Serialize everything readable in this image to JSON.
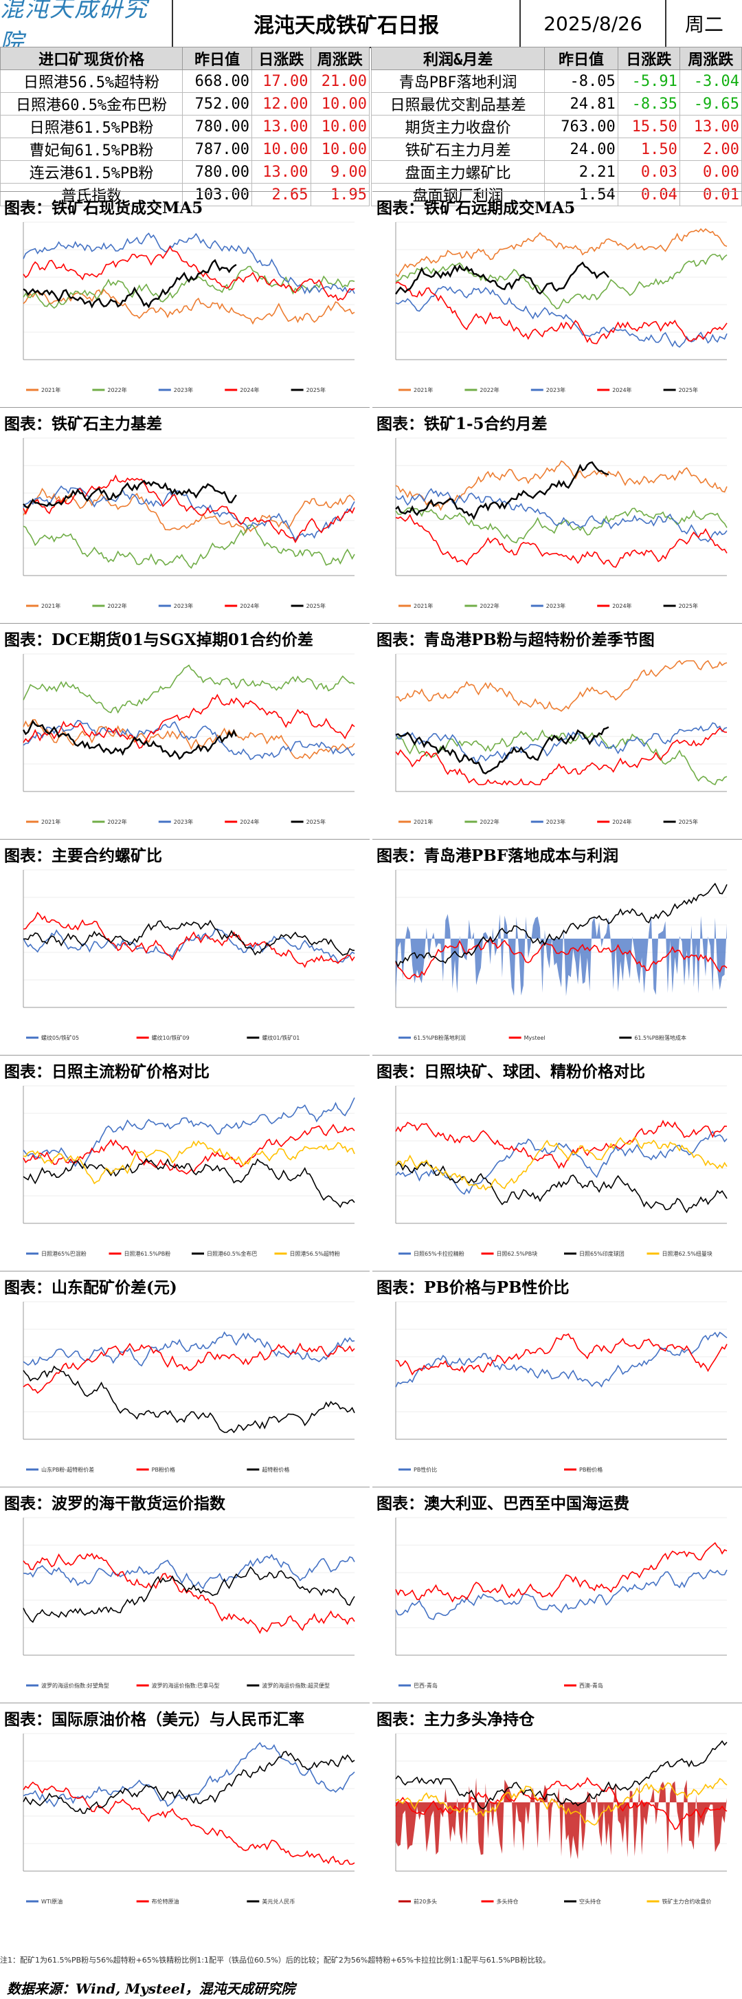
{
  "header": {
    "logo": "混沌天成研究院",
    "title": "混沌天成铁矿石日报",
    "date": "2025/8/26",
    "weekday": "周二"
  },
  "left_table": {
    "headers": [
      "进口矿现货价格",
      "昨日值",
      "日涨跌",
      "周涨跌"
    ],
    "rows": [
      [
        "日照港56.5%超特粉",
        "668.00",
        "17.00",
        "21.00"
      ],
      [
        "日照港60.5%金布巴粉",
        "752.00",
        "12.00",
        "10.00"
      ],
      [
        "日照港61.5%PB粉",
        "780.00",
        "13.00",
        "10.00"
      ],
      [
        "曹妃甸61.5%PB粉",
        "787.00",
        "10.00",
        "10.00"
      ],
      [
        "连云港61.5%PB粉",
        "780.00",
        "13.00",
        "9.00"
      ],
      [
        "普氏指数",
        "103.00",
        "2.65",
        "1.95"
      ]
    ]
  },
  "right_table": {
    "headers": [
      "利润&月差",
      "昨日值",
      "日涨跌",
      "周涨跌"
    ],
    "rows": [
      [
        "青岛PBF落地利润",
        "-8.05",
        "-5.91",
        "-3.04"
      ],
      [
        "日照最优交割品基差",
        "24.81",
        "-8.35",
        "-9.65"
      ],
      [
        "期货主力收盘价",
        "763.00",
        "15.50",
        "13.00"
      ],
      [
        "铁矿石主力月差",
        "24.00",
        "1.50",
        "2.00"
      ],
      [
        "盘面主力螺矿比",
        "2.21",
        "0.03",
        "0.00"
      ],
      [
        "盘面钢厂利润",
        "1.54",
        "0.04",
        "0.01"
      ]
    ]
  },
  "colors": {
    "up": "#e01515",
    "down": "#13b013",
    "y2021": "#ed7d31",
    "y2022": "#70ad47",
    "y2023": "#4472c4",
    "y2024": "#ff0000",
    "y2025": "#000000"
  },
  "panels": [
    {
      "id": "p1",
      "title": "图表：铁矿石现货成交MA5",
      "legend": [
        "2021年",
        "2022年",
        "2023年",
        "2024年",
        "2025年"
      ]
    },
    {
      "id": "p2",
      "title": "图表：铁矿石远期成交MA5",
      "legend": [
        "2021年",
        "2022年",
        "2023年",
        "2024年",
        "2025年"
      ]
    },
    {
      "id": "p3",
      "title": "图表：铁矿石主力基差",
      "legend": [
        "2021年",
        "2022年",
        "2023年",
        "2024年",
        "2025年"
      ]
    },
    {
      "id": "p4",
      "title": "图表：铁矿1-5合约月差",
      "legend": [
        "2021年",
        "2022年",
        "2023年",
        "2024年",
        "2025年"
      ]
    },
    {
      "id": "p5",
      "title": "图表：DCE期货01与SGX掉期01合约价差",
      "legend": [
        "2021年",
        "2022年",
        "2023年",
        "2024年",
        "2025年"
      ]
    },
    {
      "id": "p6",
      "title": "图表：青岛港PB粉与超特粉价差季节图",
      "legend": [
        "2021年",
        "2022年",
        "2023年",
        "2024年",
        "2025年"
      ]
    },
    {
      "id": "p7",
      "title": "图表：主要合约螺矿比",
      "legend": [
        "螺纹05/铁矿05",
        "螺纹10/铁矿09",
        "螺纹01/铁矿01"
      ]
    },
    {
      "id": "p8",
      "title": "图表：青岛港PBF落地成本与利润",
      "legend": [
        "61.5%PB粉落地利润",
        "Mysteel",
        "61.5%PB粉落地成本"
      ]
    },
    {
      "id": "p9",
      "title": "图表：日照主流粉矿价格对比",
      "legend": [
        "日照港65%巴混粉",
        "日照港61.5%PB粉",
        "日照港60.5%金布巴",
        "日照港56.5%超特粉"
      ]
    },
    {
      "id": "p10",
      "title": "图表：日照块矿、球团、精粉价格对比",
      "legend": [
        "日照65%卡拉拉精粉",
        "日照62.5%PB块",
        "日照65%印度球团",
        "日照港62.5%纽曼块"
      ]
    },
    {
      "id": "p11",
      "title": "图表：山东配矿价差(元)",
      "legend": [
        "山东PB粉-超特粉价差",
        "PB粉价格",
        "超特粉价格"
      ]
    },
    {
      "id": "p12",
      "title": "图表：PB价格与PB性价比",
      "legend": [
        "PB性价比",
        "PB粉价格"
      ]
    },
    {
      "id": "p13",
      "title": "图表：波罗的海干散货运价指数",
      "legend": [
        "波罗的海运价指数:好望角型",
        "波罗的海运价指数:巴拿马型",
        "波罗的海运价指数:超灵便型"
      ]
    },
    {
      "id": "p14",
      "title": "图表：澳大利亚、巴西至中国海运费",
      "legend": [
        "巴西-青岛",
        "西澳-青岛"
      ]
    },
    {
      "id": "p15",
      "title": "图表：国际原油价格（美元）与人民币汇率",
      "legend": [
        "WTI原油",
        "布伦特原油",
        "美元兑人民币"
      ]
    },
    {
      "id": "p16",
      "title": "图表：主力多头净持仓",
      "legend": [
        "前20多头",
        "多头持仓",
        "空头持仓",
        "铁矿主力合约收盘价"
      ]
    }
  ],
  "footnote": "注1：配矿1为61.5%PB粉与56%超特粉+65%铁精粉比例1:1配平（铁品位60.5%）后的比较；配矿2为56%超特粉+65%卡拉拉比例1:1配平与61.5%PB粉比较。",
  "source": "数据来源：Wind, Mysteel，混沌天成研究院"
}
